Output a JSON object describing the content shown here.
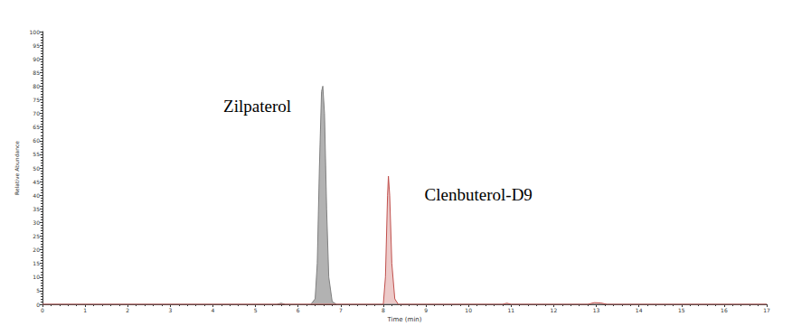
{
  "chart_data": {
    "type": "line",
    "x_label": "Time (min)",
    "y_label": "Relative Abundance",
    "xlim": [
      0,
      17
    ],
    "xticks": [
      0,
      1,
      2,
      3,
      4,
      5,
      6,
      7,
      8,
      9,
      10,
      11,
      12,
      13,
      14,
      15,
      16,
      17
    ],
    "ylim": [
      0,
      100
    ],
    "yticks": [
      0,
      5,
      10,
      15,
      20,
      25,
      30,
      35,
      40,
      45,
      50,
      55,
      60,
      65,
      70,
      75,
      80,
      85,
      90,
      95,
      100
    ],
    "grid": false,
    "series": [
      {
        "name": "Zilpaterol",
        "color": "#7f7f7f",
        "x": [
          0,
          5.5,
          5.6,
          5.7,
          6.3,
          6.4,
          6.45,
          6.5,
          6.55,
          6.58,
          6.62,
          6.67,
          6.72,
          6.8,
          6.9,
          17
        ],
        "values": [
          0,
          0,
          0.4,
          0,
          0,
          2,
          15,
          50,
          78,
          80,
          70,
          35,
          10,
          1,
          0,
          0
        ]
      },
      {
        "name": "Clenbuterol-D9",
        "color": "#c0504d",
        "x": [
          0,
          8.0,
          8.05,
          8.1,
          8.12,
          8.15,
          8.2,
          8.27,
          8.35,
          10.8,
          10.9,
          11.0,
          12.8,
          12.95,
          13.1,
          13.25,
          17
        ],
        "values": [
          0,
          0,
          10,
          40,
          47,
          40,
          15,
          2,
          0,
          0,
          0.4,
          0,
          0,
          0.6,
          0.5,
          0,
          0
        ]
      }
    ]
  }
}
